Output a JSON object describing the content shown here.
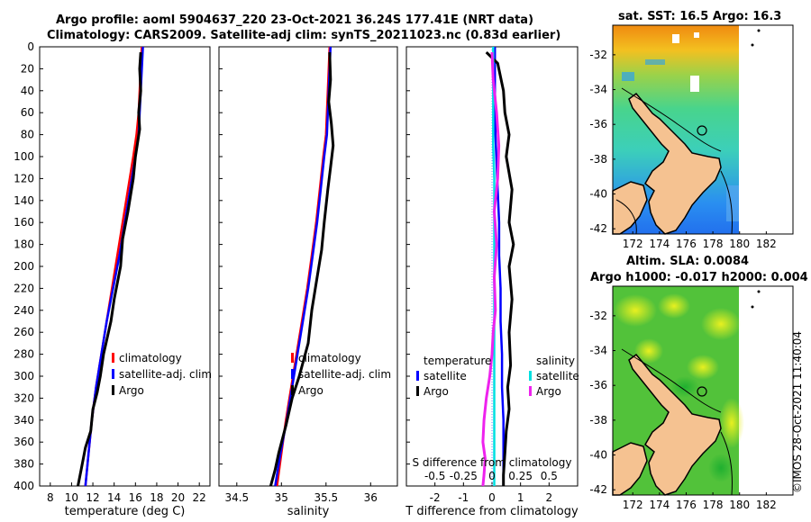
{
  "title": {
    "line1": "Argo profile: aoml 5904637_220 23-Oct-2021 36.24S 177.41E (NRT data)",
    "line2": "Climatology: CARS2009. Satellite-adj clim: synTS_20211023.nc (0.83d earlier)"
  },
  "map_sst": {
    "title": "sat. SST: 16.5 Argo: 16.3"
  },
  "map_sla": {
    "title1": "Altim. SLA: 0.0084",
    "title2": "Argo h1000: -0.017 h2000: 0.004"
  },
  "watermark": "©IMOS 28-Oct-2021 11:40:04",
  "colors": {
    "climatology": "#ff0000",
    "satellite": "#0000ff",
    "argo": "#000000",
    "t_satellite": "#00e0e0",
    "s_argo": "#ee22ee",
    "land": "#f5c291"
  },
  "chart_data": [
    {
      "type": "line",
      "title": "temperature",
      "xlabel": "temperature (deg C)",
      "xlim": [
        7,
        23
      ],
      "ylim": [
        0,
        400
      ],
      "xticks": [
        8,
        10,
        12,
        14,
        16,
        18,
        20,
        22
      ],
      "yticks": [
        0,
        20,
        40,
        60,
        80,
        100,
        120,
        140,
        160,
        180,
        200,
        220,
        240,
        260,
        280,
        300,
        320,
        340,
        360,
        380,
        400
      ],
      "legend": [
        "climatology",
        "satellite-adj. clim",
        "Argo"
      ],
      "series": [
        {
          "name": "climatology",
          "x": [
            16.6,
            16.5,
            16.4,
            16.3,
            16.1,
            15.8,
            15.3,
            14.8,
            14.3,
            13.8,
            13.3,
            12.8,
            12.3,
            11.9,
            11.6,
            11.3
          ],
          "y": [
            0,
            20,
            40,
            60,
            80,
            100,
            130,
            160,
            190,
            220,
            250,
            280,
            310,
            340,
            370,
            400
          ]
        },
        {
          "name": "satellite-adj. clim",
          "x": [
            16.7,
            16.6,
            16.5,
            16.4,
            16.3,
            16.0,
            15.5,
            15.0,
            14.5,
            13.9,
            13.3,
            12.8,
            12.3,
            11.9,
            11.6,
            11.3
          ],
          "y": [
            0,
            20,
            40,
            60,
            80,
            100,
            130,
            160,
            190,
            220,
            250,
            280,
            310,
            340,
            370,
            400
          ]
        },
        {
          "name": "Argo",
          "x": [
            16.5,
            16.4,
            16.5,
            16.3,
            16.4,
            16.0,
            15.8,
            15.3,
            14.8,
            14.6,
            14.0,
            13.7,
            13.0,
            12.7,
            12.4,
            12.0,
            11.8,
            11.3,
            10.9,
            10.6
          ],
          "y": [
            5,
            20,
            40,
            60,
            75,
            100,
            120,
            150,
            175,
            200,
            230,
            250,
            280,
            300,
            315,
            330,
            350,
            365,
            385,
            400
          ]
        }
      ]
    },
    {
      "type": "line",
      "title": "salinity",
      "xlabel": "salinity",
      "xlim": [
        34.3,
        36.3
      ],
      "ylim": [
        0,
        400
      ],
      "xticks": [
        34.5,
        35,
        35.5,
        36
      ],
      "legend": [
        "climatology",
        "satellite-adj. clim",
        "Argo"
      ],
      "series": [
        {
          "name": "climatology",
          "x": [
            35.54,
            35.53,
            35.52,
            35.51,
            35.5,
            35.47,
            35.43,
            35.39,
            35.34,
            35.29,
            35.23,
            35.17,
            35.11,
            35.05,
            35.0,
            34.95
          ],
          "y": [
            0,
            20,
            40,
            60,
            80,
            100,
            130,
            160,
            190,
            220,
            250,
            280,
            310,
            340,
            370,
            400
          ]
        },
        {
          "name": "satellite-adj. clim",
          "x": [
            35.55,
            35.54,
            35.53,
            35.52,
            35.51,
            35.48,
            35.44,
            35.4,
            35.35,
            35.3,
            35.24,
            35.18,
            35.12,
            35.06,
            34.99,
            34.93
          ],
          "y": [
            0,
            20,
            40,
            60,
            80,
            100,
            130,
            160,
            190,
            220,
            250,
            280,
            310,
            340,
            370,
            400
          ]
        },
        {
          "name": "Argo",
          "x": [
            35.54,
            35.55,
            35.53,
            35.56,
            35.58,
            35.55,
            35.52,
            35.48,
            35.45,
            35.4,
            35.34,
            35.3,
            35.2,
            35.12,
            35.05,
            34.97,
            34.93,
            34.88
          ],
          "y": [
            5,
            30,
            50,
            70,
            90,
            110,
            130,
            160,
            185,
            210,
            240,
            270,
            300,
            320,
            345,
            370,
            385,
            400
          ]
        }
      ]
    },
    {
      "type": "line",
      "title": "difference from climatology",
      "xlabel": "T difference from climatology",
      "xlabel_top": "S difference from climatology",
      "xlim": [
        -3,
        3
      ],
      "ylim": [
        0,
        400
      ],
      "xticks": [
        -2,
        -1,
        0,
        1,
        2
      ],
      "xticks_top": [
        "-0.5",
        "-0.25",
        "0",
        "0.25",
        "0.5"
      ],
      "legend_t": {
        "header": "temperature",
        "items": [
          "satellite",
          "Argo"
        ]
      },
      "legend_s": {
        "header": "salinity",
        "items": [
          "satellite",
          "Argo"
        ]
      },
      "series": [
        {
          "name": "T satellite",
          "x": [
            0.1,
            0.1,
            0.1,
            0.12,
            0.12,
            0.15,
            0.2,
            0.25,
            0.25,
            0.3,
            0.3,
            0.35,
            0.35,
            0.4,
            0.4,
            0.4
          ],
          "y": [
            0,
            20,
            40,
            60,
            80,
            100,
            130,
            160,
            190,
            220,
            250,
            280,
            310,
            340,
            370,
            400
          ]
        },
        {
          "name": "T Argo",
          "x": [
            -0.2,
            0.2,
            0.4,
            0.45,
            0.6,
            0.5,
            0.7,
            0.6,
            0.75,
            0.6,
            0.7,
            0.6,
            0.65,
            0.55,
            0.6,
            0.5,
            0.45,
            0.4,
            0.4
          ],
          "y": [
            5,
            15,
            40,
            60,
            80,
            100,
            130,
            160,
            180,
            200,
            230,
            260,
            290,
            310,
            330,
            350,
            370,
            390,
            400
          ]
        },
        {
          "name": "S satellite",
          "x": [
            0.01,
            0.01,
            0.01,
            0.01,
            0.02,
            0.02,
            0.02,
            0.02,
            0.02,
            0.02,
            0.02,
            0.02,
            0.02,
            0.02
          ],
          "y": [
            0,
            30,
            60,
            90,
            120,
            150,
            180,
            210,
            240,
            270,
            300,
            330,
            360,
            400
          ]
        },
        {
          "name": "S Argo",
          "x": [
            0.0,
            0.01,
            0.04,
            0.06,
            0.05,
            0.02,
            0.04,
            0.02,
            0.03,
            0.01,
            0.0,
            -0.02,
            -0.05,
            -0.07,
            -0.08,
            -0.06,
            -0.07,
            -0.08
          ],
          "y": [
            5,
            30,
            60,
            90,
            120,
            150,
            180,
            210,
            240,
            260,
            280,
            300,
            320,
            340,
            360,
            375,
            390,
            400
          ]
        }
      ]
    },
    {
      "type": "heatmap",
      "title": "sat. SST map",
      "xticks": [
        "172",
        "174",
        "176",
        "178",
        "180",
        "182"
      ],
      "yticks": [
        "-32",
        "-34",
        "-36",
        "-38",
        "-40",
        "-42"
      ],
      "xlim": [
        170.5,
        184
      ],
      "ylim": [
        -42.3,
        -30.3
      ],
      "profile_position": [
        177.41,
        -36.24
      ]
    },
    {
      "type": "heatmap",
      "title": "Altim. SLA map",
      "xticks": [
        "172",
        "174",
        "176",
        "178",
        "180",
        "182"
      ],
      "yticks": [
        "-32",
        "-34",
        "-36",
        "-38",
        "-40",
        "-42"
      ],
      "xlim": [
        170.5,
        184
      ],
      "ylim": [
        -42.3,
        -30.3
      ],
      "profile_position": [
        177.41,
        -36.24
      ]
    }
  ]
}
